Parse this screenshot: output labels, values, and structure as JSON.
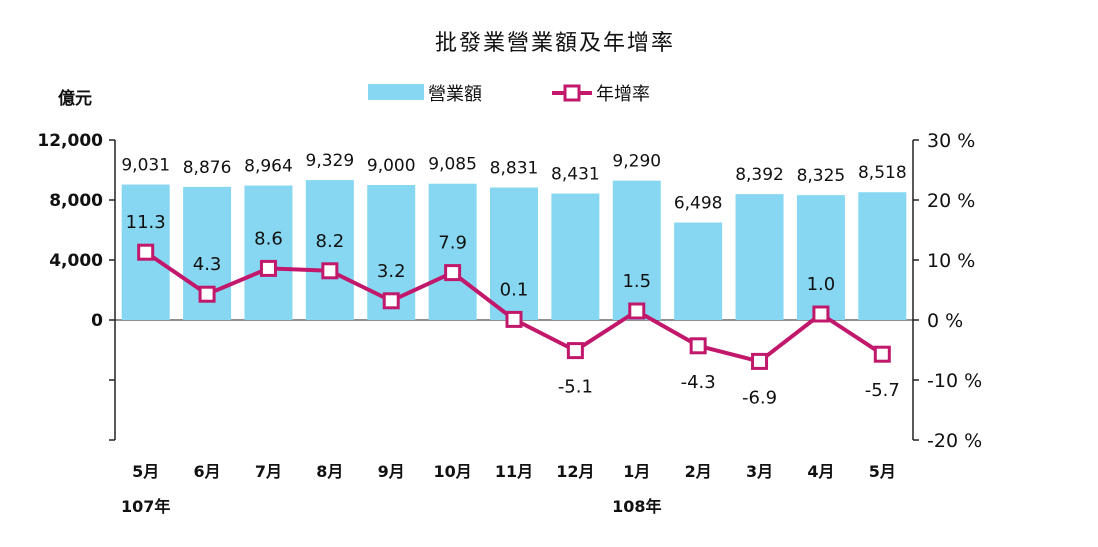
{
  "chart_data": {
    "type": "bar+line",
    "title": "批發業營業額及年增率",
    "left_unit": "億元",
    "categories": [
      "5月",
      "6月",
      "7月",
      "8月",
      "9月",
      "10月",
      "11月",
      "12月",
      "1月",
      "2月",
      "3月",
      "4月",
      "5月"
    ],
    "year_labels": [
      {
        "index": 0,
        "label": "107年"
      },
      {
        "index": 8,
        "label": "108年"
      }
    ],
    "series": [
      {
        "name": "營業額",
        "type": "bar",
        "axis": "left",
        "color": "#87d7f2",
        "values": [
          9031,
          8876,
          8964,
          9329,
          9000,
          9085,
          8831,
          8431,
          9290,
          6498,
          8392,
          8325,
          8518
        ],
        "labels": [
          "9,031",
          "8,876",
          "8,964",
          "9,329",
          "9,000",
          "9,085",
          "8,831",
          "8,431",
          "9,290",
          "6,498",
          "8,392",
          "8,325",
          "8,518"
        ]
      },
      {
        "name": "年增率",
        "type": "line",
        "axis": "right",
        "color": "#c2186b",
        "values": [
          11.3,
          4.3,
          8.6,
          8.2,
          3.2,
          7.9,
          0.1,
          -5.1,
          1.5,
          -4.3,
          -6.9,
          1.0,
          -5.7
        ],
        "labels": [
          "11.3",
          "4.3",
          "8.6",
          "8.2",
          "3.2",
          "7.9",
          "0.1",
          "-5.1",
          "1.5",
          "-4.3",
          "-6.9",
          "1.0",
          "-5.7"
        ]
      }
    ],
    "y_left": {
      "ylim": [
        -8000,
        12000
      ],
      "ticks": [
        0,
        4000,
        8000,
        12000
      ],
      "tick_labels": [
        "0",
        "4,000",
        "8,000",
        "12,000"
      ]
    },
    "y_right": {
      "ylim": [
        -20,
        30
      ],
      "ticks": [
        -20,
        -10,
        0,
        10,
        20,
        30
      ],
      "tick_labels": [
        "-20 %",
        "-10 %",
        "0 %",
        "10 %",
        "20 %",
        "30 %"
      ]
    },
    "legend_position": "top-center",
    "grid": false
  }
}
